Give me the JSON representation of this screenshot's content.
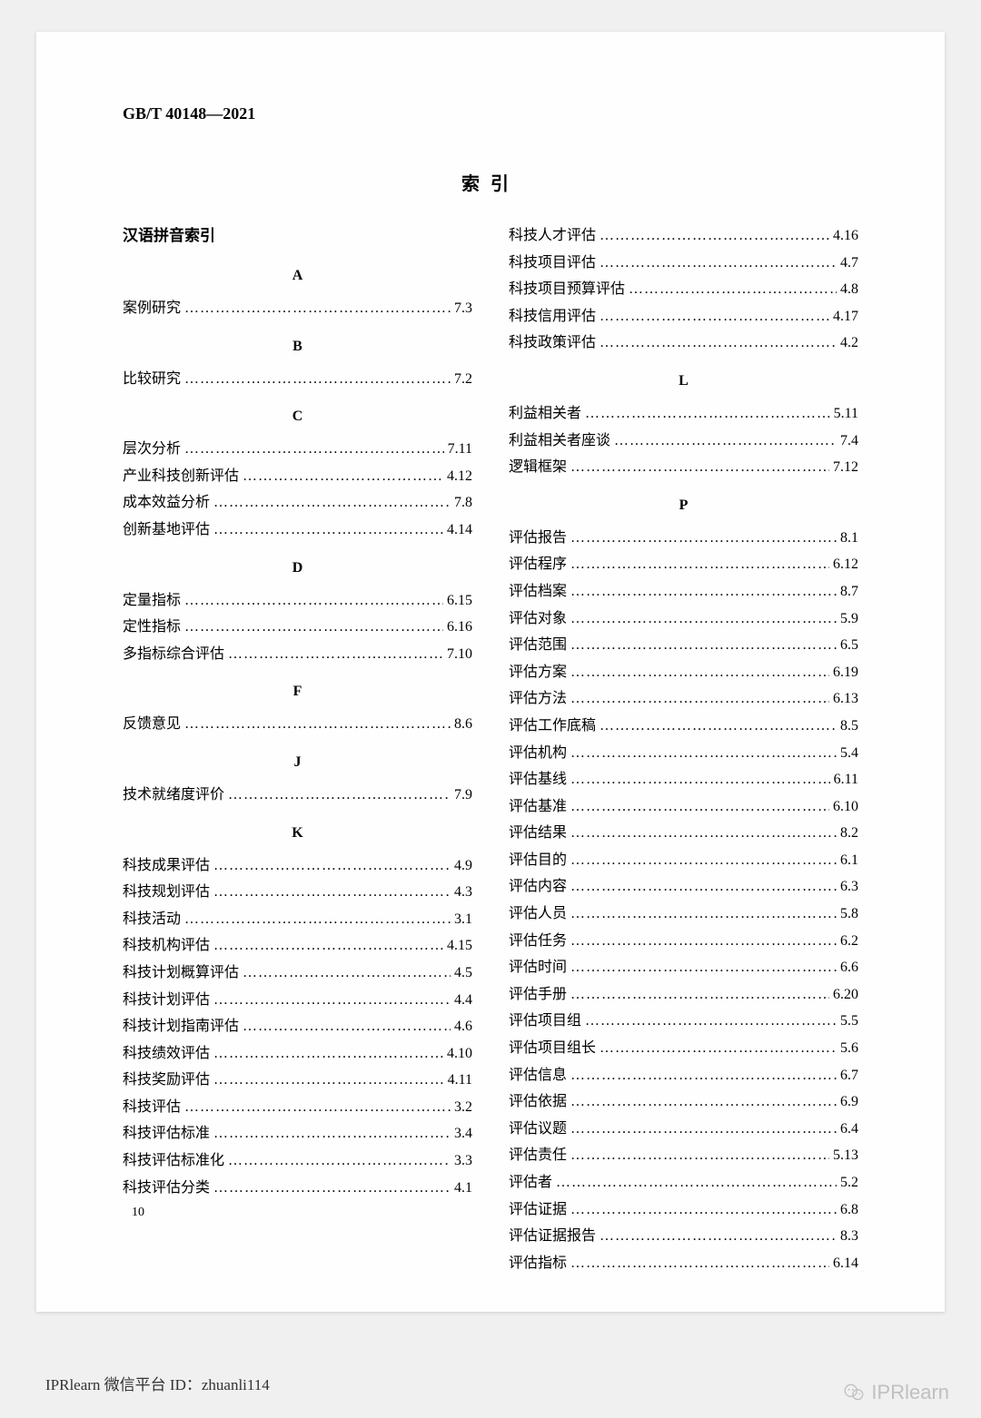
{
  "header_standard": "GB/T 40148—2021",
  "index_title": "索引",
  "subtitle_pinyin": "汉语拼音索引",
  "page_number": "10",
  "footer_text": "IPRlearn 微信平台 ID：zhuanli114",
  "watermark_text": "IPRlearn",
  "dots_fill": "………………………………………………………………",
  "left_sections": [
    {
      "letter": "A",
      "entries": [
        {
          "term": "案例研究",
          "ref": "7.3"
        }
      ]
    },
    {
      "letter": "B",
      "entries": [
        {
          "term": "比较研究",
          "ref": "7.2"
        }
      ]
    },
    {
      "letter": "C",
      "entries": [
        {
          "term": "层次分析",
          "ref": "7.11"
        },
        {
          "term": "产业科技创新评估",
          "ref": "4.12"
        },
        {
          "term": "成本效益分析",
          "ref": "7.8"
        },
        {
          "term": "创新基地评估",
          "ref": "4.14"
        }
      ]
    },
    {
      "letter": "D",
      "entries": [
        {
          "term": "定量指标",
          "ref": "6.15"
        },
        {
          "term": "定性指标",
          "ref": "6.16"
        },
        {
          "term": "多指标综合评估",
          "ref": "7.10"
        }
      ]
    },
    {
      "letter": "F",
      "entries": [
        {
          "term": "反馈意见",
          "ref": "8.6"
        }
      ]
    },
    {
      "letter": "J",
      "entries": [
        {
          "term": "技术就绪度评价",
          "ref": "7.9"
        }
      ]
    },
    {
      "letter": "K",
      "entries": [
        {
          "term": "科技成果评估",
          "ref": "4.9"
        },
        {
          "term": "科技规划评估",
          "ref": "4.3"
        },
        {
          "term": "科技活动",
          "ref": "3.1"
        },
        {
          "term": "科技机构评估",
          "ref": "4.15"
        },
        {
          "term": "科技计划概算评估",
          "ref": "4.5"
        },
        {
          "term": "科技计划评估",
          "ref": "4.4"
        },
        {
          "term": "科技计划指南评估",
          "ref": "4.6"
        },
        {
          "term": "科技绩效评估",
          "ref": "4.10"
        },
        {
          "term": "科技奖励评估",
          "ref": "4.11"
        },
        {
          "term": "科技评估",
          "ref": "3.2"
        },
        {
          "term": "科技评估标准",
          "ref": "3.4"
        },
        {
          "term": "科技评估标准化",
          "ref": "3.3"
        },
        {
          "term": "科技评估分类",
          "ref": "4.1"
        }
      ]
    }
  ],
  "right_sections": [
    {
      "letter": "",
      "entries": [
        {
          "term": "科技人才评估",
          "ref": "4.16"
        },
        {
          "term": "科技项目评估",
          "ref": "4.7"
        },
        {
          "term": "科技项目预算评估",
          "ref": "4.8"
        },
        {
          "term": "科技信用评估",
          "ref": "4.17"
        },
        {
          "term": "科技政策评估",
          "ref": "4.2"
        }
      ]
    },
    {
      "letter": "L",
      "entries": [
        {
          "term": "利益相关者",
          "ref": "5.11"
        },
        {
          "term": "利益相关者座谈",
          "ref": "7.4"
        },
        {
          "term": "逻辑框架",
          "ref": "7.12"
        }
      ]
    },
    {
      "letter": "P",
      "entries": [
        {
          "term": "评估报告",
          "ref": "8.1"
        },
        {
          "term": "评估程序",
          "ref": "6.12"
        },
        {
          "term": "评估档案",
          "ref": "8.7"
        },
        {
          "term": "评估对象",
          "ref": "5.9"
        },
        {
          "term": "评估范围",
          "ref": "6.5"
        },
        {
          "term": "评估方案",
          "ref": "6.19"
        },
        {
          "term": "评估方法",
          "ref": "6.13"
        },
        {
          "term": "评估工作底稿",
          "ref": "8.5"
        },
        {
          "term": "评估机构",
          "ref": "5.4"
        },
        {
          "term": "评估基线",
          "ref": "6.11"
        },
        {
          "term": "评估基准",
          "ref": "6.10"
        },
        {
          "term": "评估结果",
          "ref": "8.2"
        },
        {
          "term": "评估目的",
          "ref": "6.1"
        },
        {
          "term": "评估内容",
          "ref": "6.3"
        },
        {
          "term": "评估人员",
          "ref": "5.8"
        },
        {
          "term": "评估任务",
          "ref": "6.2"
        },
        {
          "term": "评估时间",
          "ref": "6.6"
        },
        {
          "term": "评估手册",
          "ref": "6.20"
        },
        {
          "term": "评估项目组",
          "ref": "5.5"
        },
        {
          "term": "评估项目组长",
          "ref": "5.6"
        },
        {
          "term": "评估信息",
          "ref": "6.7"
        },
        {
          "term": "评估依据",
          "ref": "6.9"
        },
        {
          "term": "评估议题",
          "ref": "6.4"
        },
        {
          "term": "评估责任",
          "ref": "5.13"
        },
        {
          "term": "评估者",
          "ref": "5.2"
        },
        {
          "term": "评估证据",
          "ref": "6.8"
        },
        {
          "term": "评估证据报告",
          "ref": "8.3"
        },
        {
          "term": "评估指标",
          "ref": "6.14"
        }
      ]
    }
  ]
}
